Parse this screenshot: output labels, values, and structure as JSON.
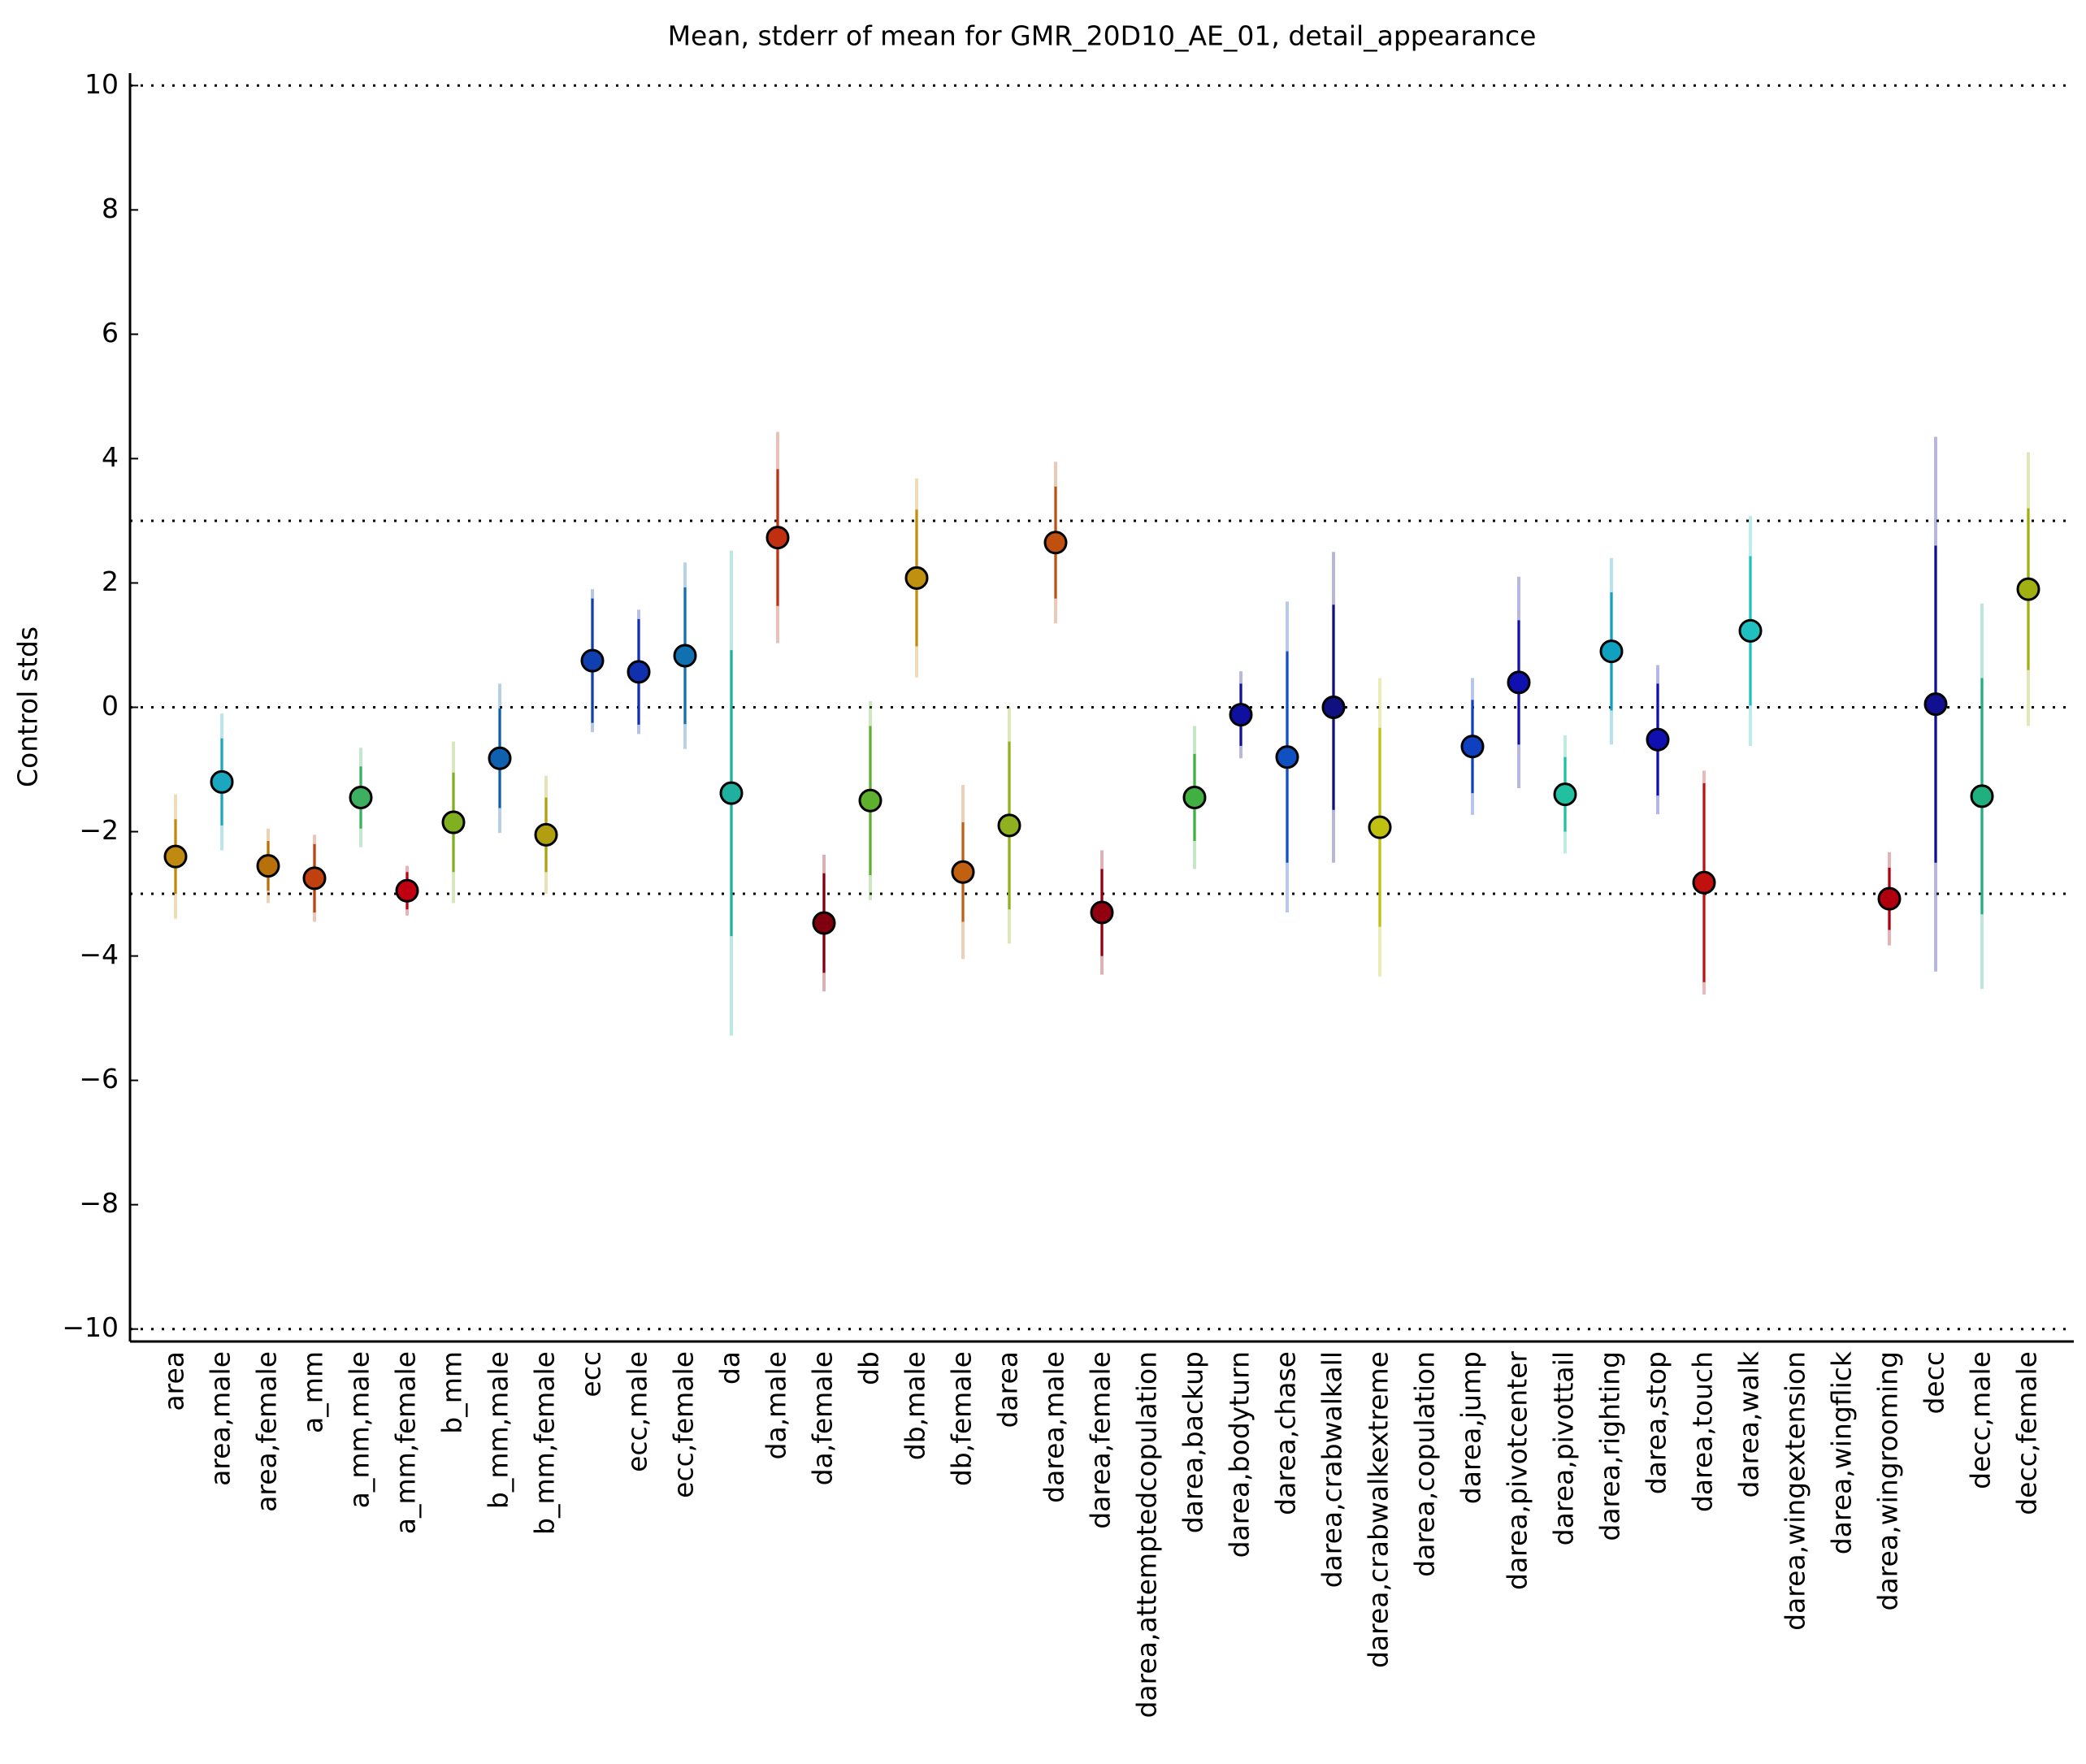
{
  "chart_data": {
    "type": "errorbar",
    "title": "Mean, stderr of mean for GMR_20D10_AE_01, detail_appearance",
    "y_label": "Control stds",
    "categories": [
      "area",
      "area,male",
      "area,female",
      "a_mm",
      "a_mm,male",
      "a_mm,female",
      "b_mm",
      "b_mm,male",
      "b_mm,female",
      "ecc",
      "ecc,male",
      "ecc,female",
      "da",
      "da,male",
      "da,female",
      "db",
      "db,male",
      "db,female",
      "darea",
      "darea,male",
      "darea,female",
      "darea,attemptedcopulation",
      "darea,backup",
      "darea,bodyturn",
      "darea,chase",
      "darea,crabwalkall",
      "darea,crabwalkextreme",
      "darea,copulation",
      "darea,jump",
      "darea,pivotcenter",
      "darea,pivottail",
      "darea,righting",
      "darea,stop",
      "darea,touch",
      "darea,walk",
      "darea,wingextension",
      "darea,wingflick",
      "darea,wingrooming",
      "decc",
      "decc,male",
      "decc,female"
    ],
    "values": [
      -2.4,
      -1.2,
      -2.55,
      -2.75,
      -1.45,
      -2.95,
      -1.85,
      -0.82,
      -2.05,
      0.75,
      0.57,
      0.83,
      -1.38,
      2.73,
      -3.47,
      -1.5,
      2.08,
      -2.65,
      -1.9,
      2.65,
      -3.3,
      null,
      -1.45,
      -0.12,
      -0.8,
      0.0,
      -1.93,
      null,
      -0.63,
      0.4,
      -1.4,
      0.9,
      -0.52,
      -2.82,
      1.23,
      null,
      null,
      -3.08,
      0.05,
      -1.43,
      1.9
    ],
    "errors": [
      0.6,
      0.7,
      0.4,
      0.55,
      0.5,
      0.3,
      0.8,
      0.8,
      0.6,
      1.0,
      0.85,
      1.1,
      2.3,
      1.1,
      0.8,
      1.2,
      1.1,
      0.8,
      1.35,
      0.9,
      0.7,
      null,
      0.7,
      0.5,
      1.7,
      1.65,
      1.6,
      null,
      0.75,
      1.0,
      0.6,
      0.95,
      0.9,
      1.6,
      1.2,
      null,
      null,
      0.5,
      2.55,
      1.9,
      1.3
    ],
    "spreads": [
      1.0,
      1.1,
      0.6,
      0.7,
      0.8,
      0.4,
      1.3,
      1.2,
      0.95,
      1.15,
      1.0,
      1.5,
      3.9,
      1.7,
      1.1,
      1.6,
      1.6,
      1.4,
      1.9,
      1.3,
      1.0,
      null,
      1.15,
      0.7,
      2.5,
      2.5,
      2.4,
      null,
      1.1,
      1.7,
      0.95,
      1.5,
      1.2,
      1.8,
      1.85,
      null,
      null,
      0.75,
      4.3,
      3.1,
      2.2
    ],
    "colors": [
      "#c08a10",
      "#19a8c0",
      "#b8700a",
      "#c04010",
      "#3cb060",
      "#c00010",
      "#80b020",
      "#1060b0",
      "#b0a010",
      "#1040b0",
      "#1030b0",
      "#1070b0",
      "#20b0a0",
      "#c03010",
      "#800010",
      "#60b030",
      "#c09010",
      "#c06010",
      "#90b020",
      "#c05010",
      "#900010",
      "#909090",
      "#40b040",
      "#1010a0",
      "#1050c0",
      "#101080",
      "#c0c010",
      "#909090",
      "#1040c0",
      "#1010b0",
      "#20c0a0",
      "#10a0c0",
      "#1010b0",
      "#c01010",
      "#20c0c0",
      "#909090",
      "#909090",
      "#b00010",
      "#101090",
      "#20b080",
      "#a0b010"
    ],
    "ylim": [
      -10.2,
      10.2
    ],
    "yticks": [
      {
        "value": -10,
        "label": "−10"
      },
      {
        "value": -8,
        "label": "−8"
      },
      {
        "value": -6,
        "label": "−6"
      },
      {
        "value": -4,
        "label": "−4"
      },
      {
        "value": -2,
        "label": "−2"
      },
      0,
      2,
      4,
      6,
      8,
      10
    ],
    "reference_lines": [
      -10,
      -3,
      0,
      3,
      10
    ]
  }
}
